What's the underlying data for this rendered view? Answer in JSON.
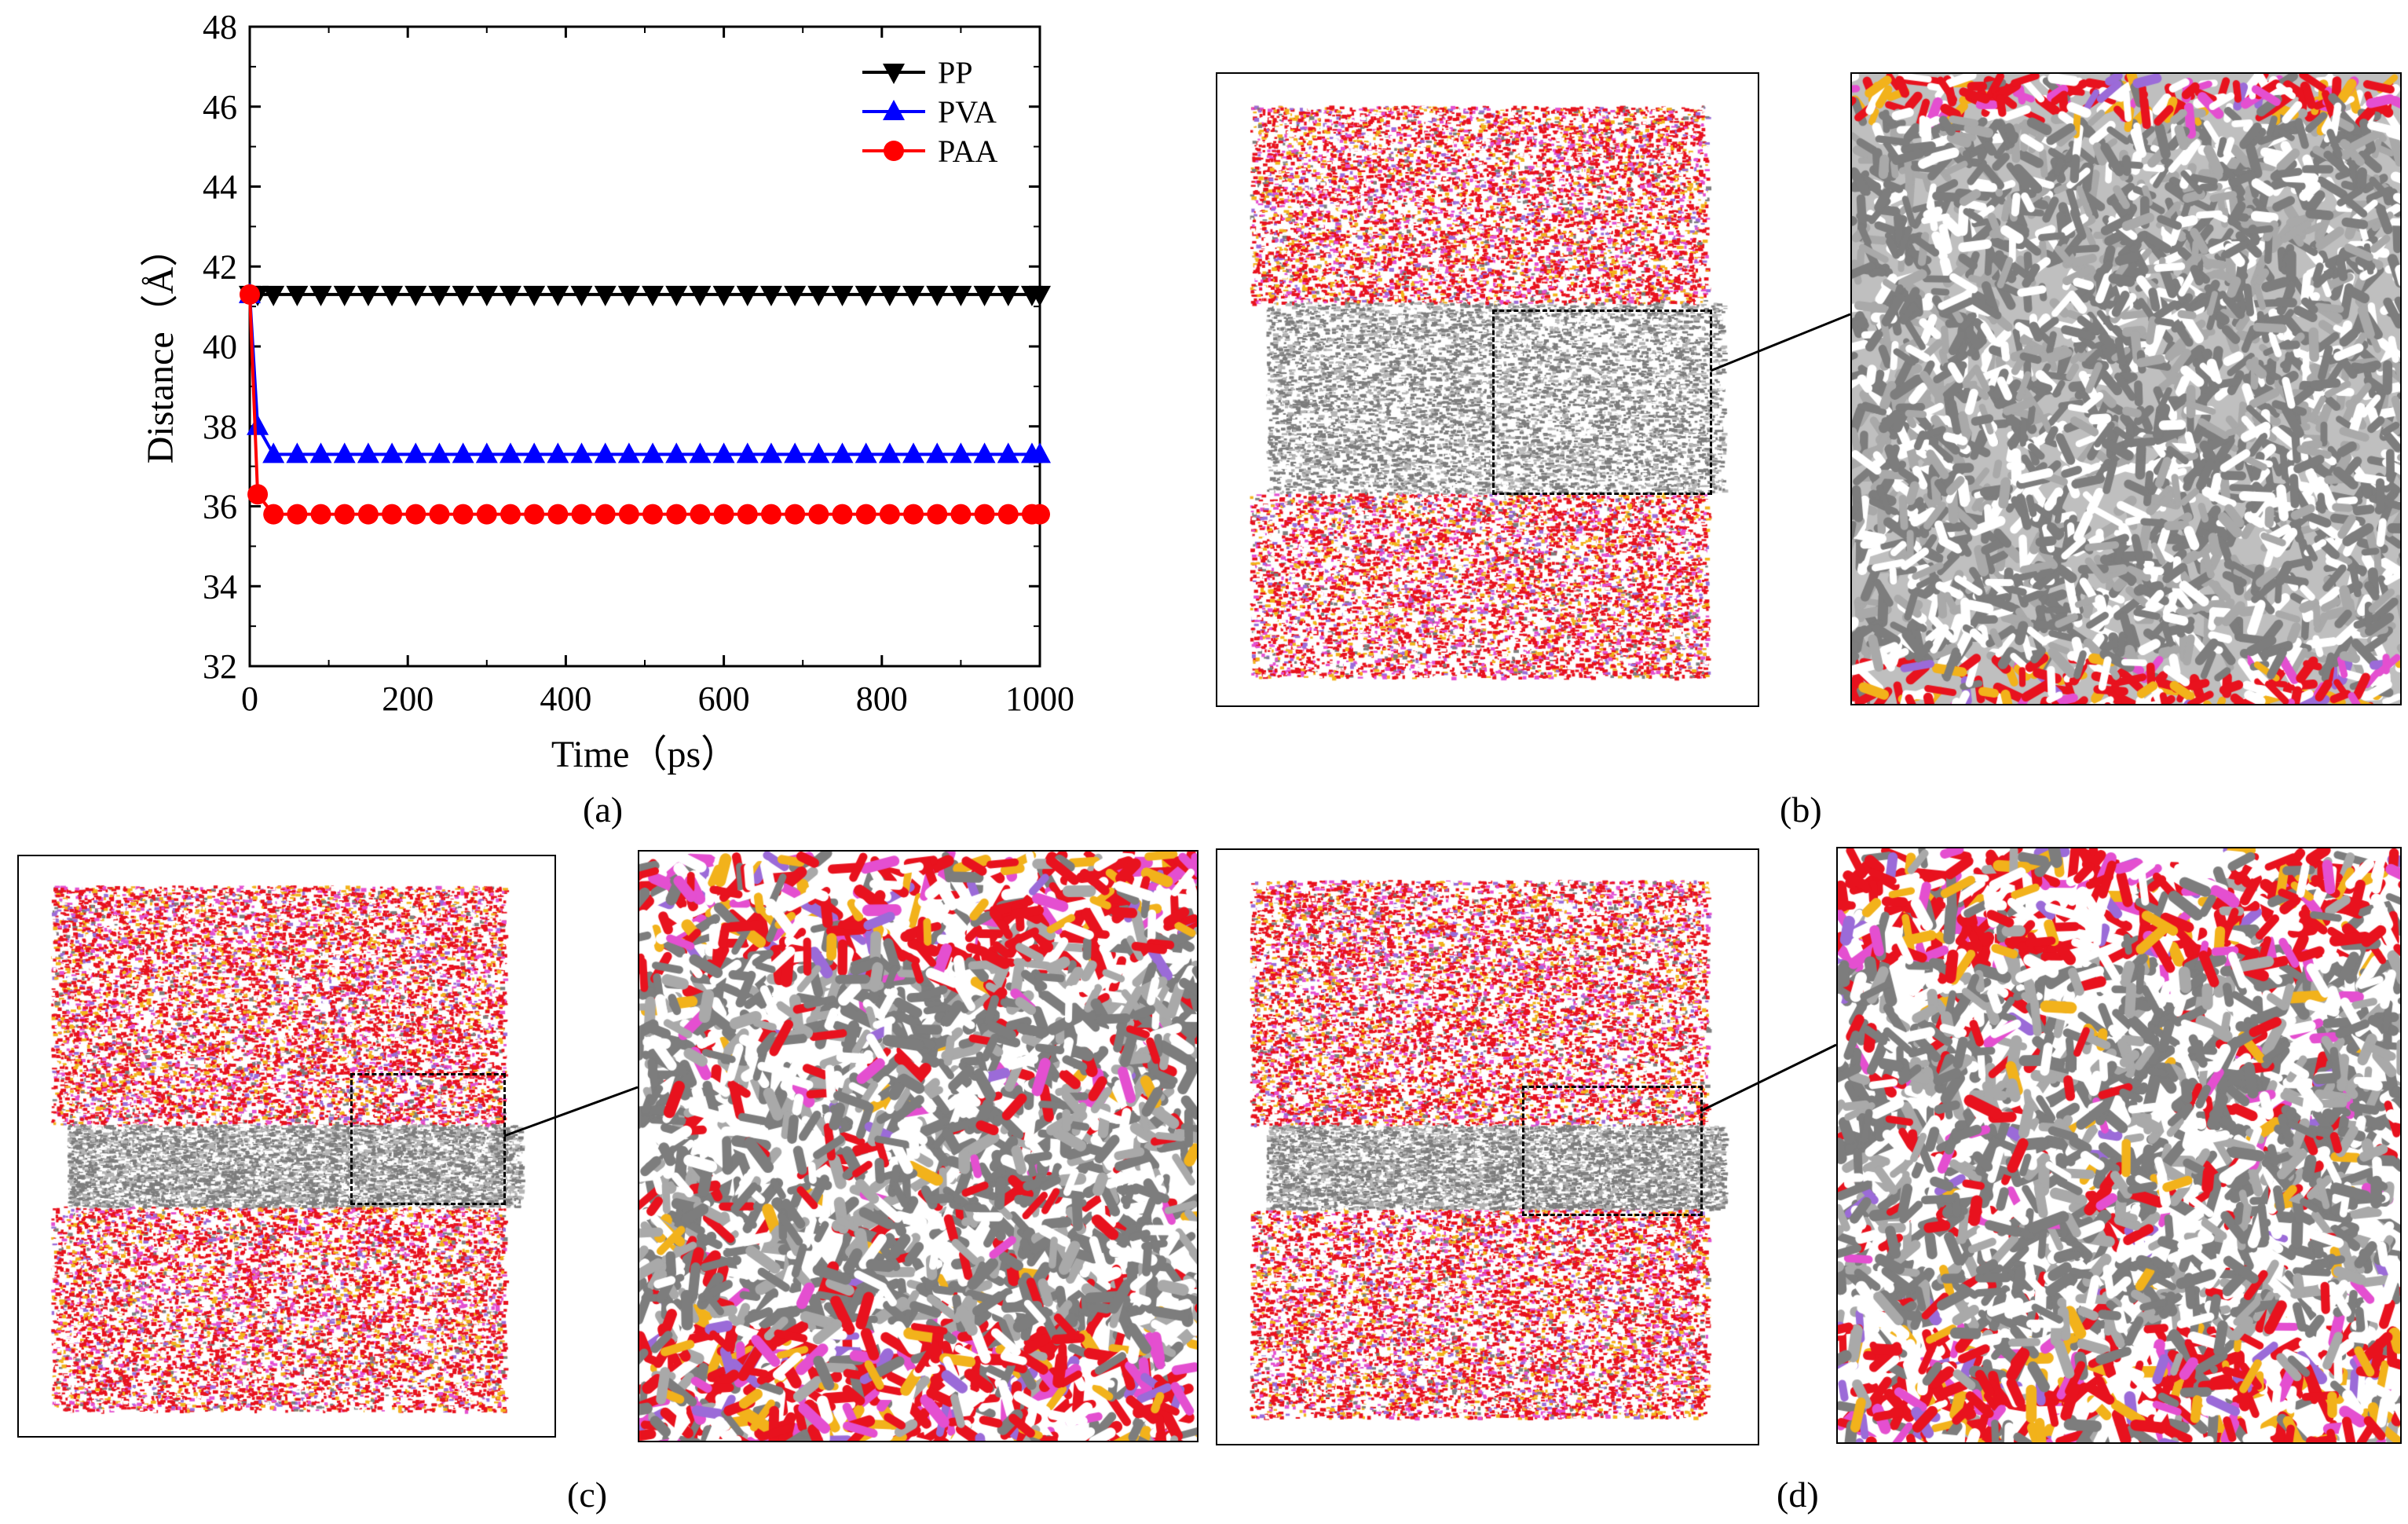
{
  "chart_data": {
    "type": "line",
    "title": "",
    "xlabel": "Time（ps）",
    "ylabel": "Distance（Å）",
    "xlim": [
      0,
      1000
    ],
    "ylim": [
      32,
      48
    ],
    "xticks": [
      0,
      200,
      400,
      600,
      800,
      1000
    ],
    "yticks": [
      32,
      34,
      36,
      38,
      40,
      42,
      44,
      46,
      48
    ],
    "legend_position": "top-right",
    "series": [
      {
        "name": "PP",
        "color": "#000000",
        "marker": "triangle-down",
        "x": [
          0,
          10,
          30,
          60,
          90,
          120,
          150,
          180,
          210,
          240,
          270,
          300,
          330,
          360,
          390,
          420,
          450,
          480,
          510,
          540,
          570,
          600,
          630,
          660,
          690,
          720,
          750,
          780,
          810,
          840,
          870,
          900,
          930,
          960,
          990,
          1000
        ],
        "y": [
          41.3,
          41.3,
          41.3,
          41.3,
          41.3,
          41.3,
          41.3,
          41.3,
          41.3,
          41.3,
          41.3,
          41.3,
          41.3,
          41.3,
          41.3,
          41.3,
          41.3,
          41.3,
          41.3,
          41.3,
          41.3,
          41.3,
          41.3,
          41.3,
          41.3,
          41.3,
          41.3,
          41.3,
          41.3,
          41.3,
          41.3,
          41.3,
          41.3,
          41.3,
          41.3,
          41.3
        ]
      },
      {
        "name": "PVA",
        "color": "#0000ff",
        "marker": "triangle-up",
        "x": [
          0,
          10,
          30,
          60,
          90,
          120,
          150,
          180,
          210,
          240,
          270,
          300,
          330,
          360,
          390,
          420,
          450,
          480,
          510,
          540,
          570,
          600,
          630,
          660,
          690,
          720,
          750,
          780,
          810,
          840,
          870,
          900,
          930,
          960,
          990,
          1000
        ],
        "y": [
          41.3,
          38.0,
          37.3,
          37.3,
          37.3,
          37.3,
          37.3,
          37.3,
          37.3,
          37.3,
          37.3,
          37.3,
          37.3,
          37.3,
          37.3,
          37.3,
          37.3,
          37.3,
          37.3,
          37.3,
          37.3,
          37.3,
          37.3,
          37.3,
          37.3,
          37.3,
          37.3,
          37.3,
          37.3,
          37.3,
          37.3,
          37.3,
          37.3,
          37.3,
          37.3,
          37.3
        ]
      },
      {
        "name": "PAA",
        "color": "#ff0000",
        "marker": "circle",
        "x": [
          0,
          10,
          30,
          60,
          90,
          120,
          150,
          180,
          210,
          240,
          270,
          300,
          330,
          360,
          390,
          420,
          450,
          480,
          510,
          540,
          570,
          600,
          630,
          660,
          690,
          720,
          750,
          780,
          810,
          840,
          870,
          900,
          930,
          960,
          990,
          1000
        ],
        "y": [
          41.3,
          36.3,
          35.8,
          35.8,
          35.8,
          35.8,
          35.8,
          35.8,
          35.8,
          35.8,
          35.8,
          35.8,
          35.8,
          35.8,
          35.8,
          35.8,
          35.8,
          35.8,
          35.8,
          35.8,
          35.8,
          35.8,
          35.8,
          35.8,
          35.8,
          35.8,
          35.8,
          35.8,
          35.8,
          35.8,
          35.8,
          35.8,
          35.8,
          35.8,
          35.8,
          35.8
        ]
      }
    ]
  },
  "panels": {
    "a": "(a)",
    "b": "(b)",
    "c": "(c)",
    "d": "(d)"
  },
  "colors": {
    "oxygen": "#e8121e",
    "hydrogen": "#ffffff",
    "carbon": "#7d7d7d",
    "sulfur": "#f2b21b",
    "sodium": "#9b6bd8",
    "pink": "#e44fd0"
  }
}
